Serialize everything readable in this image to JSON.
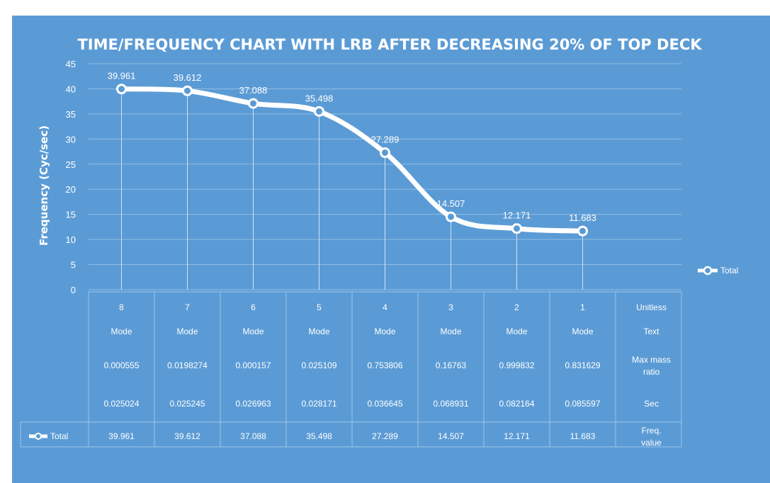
{
  "colors": {
    "background": "#5b9bd5",
    "series": "#ffffff",
    "grid": "#8fbde4"
  },
  "chart_data": {
    "type": "line",
    "title": "TIME/FREQUENCY CHART WITH LRB AFTER DECREASING 20% OF TOP DECK",
    "ylabel": "Frequency (Cyc/sec)",
    "ylim": [
      0,
      45
    ],
    "yticks": [
      "0",
      "5",
      "10",
      "15",
      "20",
      "25",
      "30",
      "35",
      "40",
      "45"
    ],
    "grid": true,
    "legend": {
      "placement": "right",
      "entries": [
        "Total"
      ]
    },
    "categories": [
      "8",
      "7",
      "6",
      "5",
      "4",
      "3",
      "2",
      "1"
    ],
    "series": [
      {
        "name": "Total",
        "values": [
          39.961,
          39.612,
          37.088,
          35.498,
          27.289,
          14.507,
          12.171,
          11.683
        ],
        "labels": [
          "39.961",
          "39.612",
          "37.088",
          "35.498",
          "27.289",
          "14.507",
          "12.171",
          "11.683"
        ]
      }
    ],
    "data_table": {
      "rows": [
        {
          "cells": [
            "8",
            "7",
            "6",
            "5",
            "4",
            "3",
            "2",
            "1"
          ],
          "unit": "Unitless"
        },
        {
          "cells": [
            "Mode",
            "Mode",
            "Mode",
            "Mode",
            "Mode",
            "Mode",
            "Mode",
            "Mode"
          ],
          "unit": "Text"
        },
        {
          "cells": [
            "0.000555",
            "0.0198274",
            "0.000157",
            "0.025109",
            "0.753806",
            "0.16763",
            "0.999832",
            "0.831629"
          ],
          "unit": "Max mass ratio"
        },
        {
          "cells": [
            "0.025024",
            "0.025245",
            "0.026963",
            "0.028171",
            "0.036645",
            "0.068931",
            "0.082164",
            "0.085597"
          ],
          "unit": "Sec"
        },
        {
          "cells": [
            "39.961",
            "39.612",
            "37.088",
            "35.498",
            "27.289",
            "14.507",
            "12.171",
            "11.683"
          ],
          "unit": "Freq. value",
          "legend_key": "Total"
        }
      ]
    }
  }
}
